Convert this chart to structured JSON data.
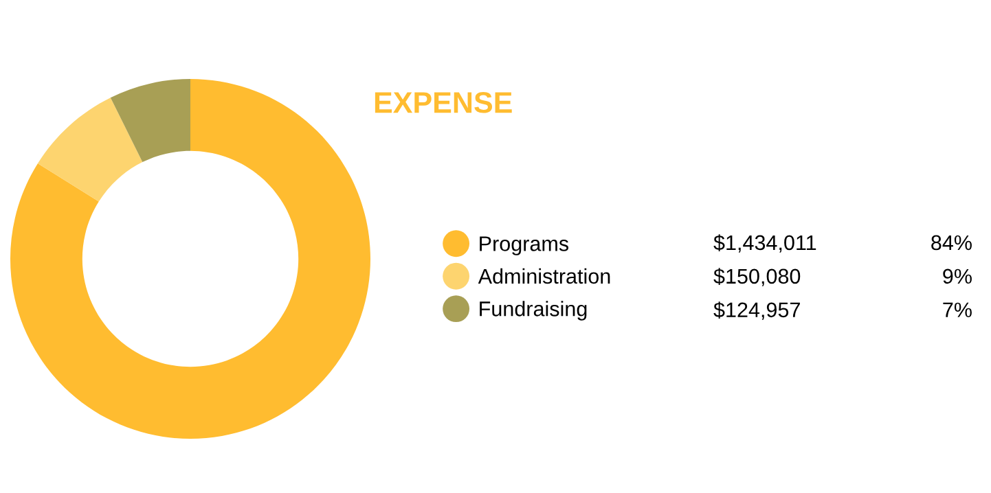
{
  "chart_data": {
    "type": "donut",
    "title": "EXPENSE",
    "categories": [
      "Programs",
      "Administration",
      "Fundraising"
    ],
    "values": [
      1434011,
      150080,
      124957
    ],
    "colors": [
      "#ffbc30",
      "#fdd46f",
      "#a89f55"
    ],
    "value_labels": [
      "$1,434,011",
      "$150,080",
      "$124,957"
    ],
    "annotations": [
      "84%",
      "9%",
      "7%"
    ],
    "legend": "right"
  }
}
